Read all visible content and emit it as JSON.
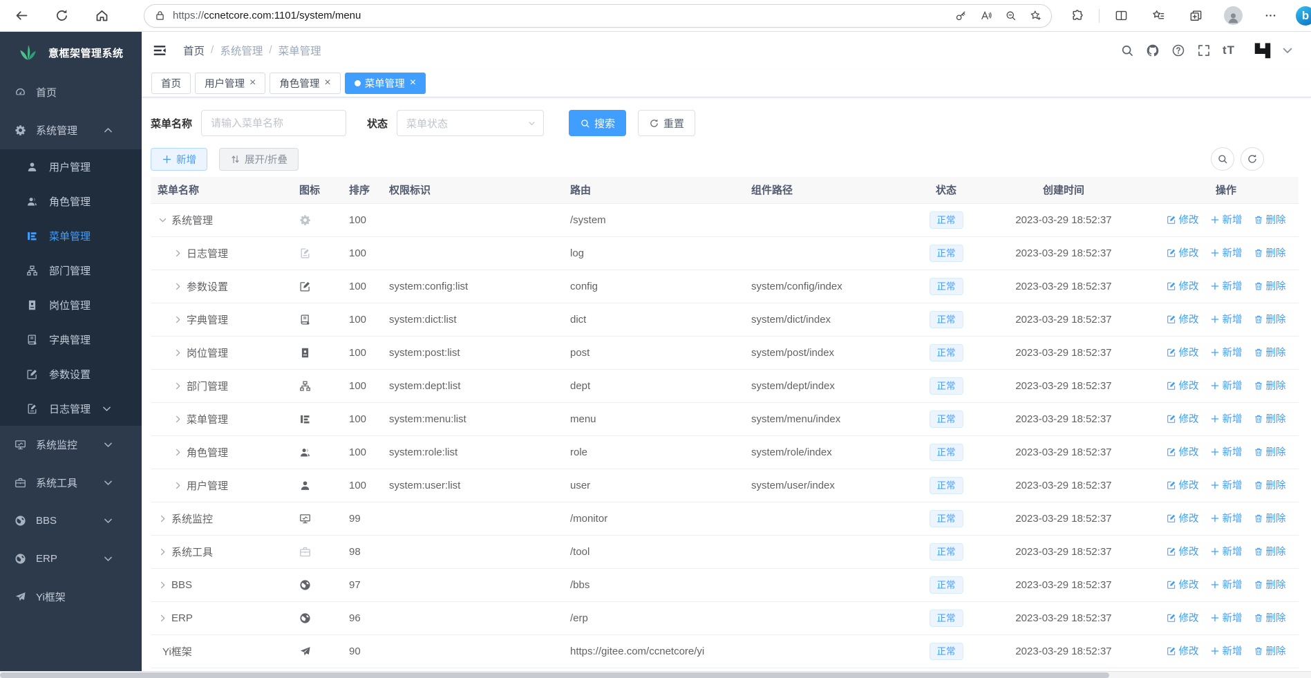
{
  "browser": {
    "url_scheme": "https://",
    "url_rest": "ccnetcore.com:1101/system/menu"
  },
  "glyphs": {
    "close": "×",
    "text_size": "tT",
    "bing": "b"
  },
  "sidebar": {
    "logo_title": "意框架管理系统",
    "items": [
      {
        "key": "home",
        "label": "首页",
        "icon": "dashboard-icon"
      },
      {
        "key": "system",
        "label": "系统管理",
        "icon": "gear-icon",
        "expanded": true,
        "children": [
          {
            "key": "user",
            "label": "用户管理",
            "icon": "user-icon"
          },
          {
            "key": "role",
            "label": "角色管理",
            "icon": "role-icon"
          },
          {
            "key": "menu",
            "label": "菜单管理",
            "icon": "menu-icon",
            "active": true
          },
          {
            "key": "dept",
            "label": "部门管理",
            "icon": "dept-icon"
          },
          {
            "key": "post",
            "label": "岗位管理",
            "icon": "post-icon"
          },
          {
            "key": "dict",
            "label": "字典管理",
            "icon": "dict-icon"
          },
          {
            "key": "config",
            "label": "参数设置",
            "icon": "config-icon"
          },
          {
            "key": "log",
            "label": "日志管理",
            "icon": "log-icon",
            "has_children": true
          }
        ]
      },
      {
        "key": "monitor",
        "label": "系统监控",
        "icon": "monitor-icon",
        "has_children": true
      },
      {
        "key": "tool",
        "label": "系统工具",
        "icon": "tool-icon",
        "has_children": true
      },
      {
        "key": "bbs",
        "label": "BBS",
        "icon": "globe-icon",
        "has_children": true
      },
      {
        "key": "erp",
        "label": "ERP",
        "icon": "globe-icon",
        "has_children": true
      },
      {
        "key": "yi",
        "label": "Yi框架",
        "icon": "plane-icon"
      }
    ]
  },
  "header": {
    "breadcrumb": [
      "首页",
      "系统管理",
      "菜单管理"
    ],
    "breadcrumb_separator": "/"
  },
  "tabs": [
    {
      "key": "home",
      "label": "首页",
      "closable": false,
      "active": false
    },
    {
      "key": "user",
      "label": "用户管理",
      "closable": true,
      "active": false
    },
    {
      "key": "role",
      "label": "角色管理",
      "closable": true,
      "active": false
    },
    {
      "key": "menu",
      "label": "菜单管理",
      "closable": true,
      "active": true
    }
  ],
  "filters": {
    "name_label": "菜单名称",
    "name_placeholder": "请输入菜单名称",
    "status_label": "状态",
    "status_placeholder": "菜单状态",
    "search_label": "搜索",
    "reset_label": "重置"
  },
  "toolbar": {
    "add_label": "新增",
    "toggle_label": "展开/折叠"
  },
  "table": {
    "headers": [
      "菜单名称",
      "图标",
      "排序",
      "权限标识",
      "路由",
      "组件路径",
      "状态",
      "创建时间",
      "操作"
    ],
    "action_labels": {
      "edit": "修改",
      "add": "新增",
      "delete": "删除"
    },
    "rows": [
      {
        "name": "系统管理",
        "icon": "gear-icon",
        "icon_muted": true,
        "level": 0,
        "expander": "down",
        "sort": "100",
        "perm": "",
        "route": "/system",
        "component": "",
        "status": "正常",
        "created": "2023-03-29 18:52:37"
      },
      {
        "name": "日志管理",
        "icon": "log-icon",
        "icon_muted": true,
        "level": 1,
        "expander": "right",
        "sort": "100",
        "perm": "",
        "route": "log",
        "component": "",
        "status": "正常",
        "created": "2023-03-29 18:52:37"
      },
      {
        "name": "参数设置",
        "icon": "config-icon",
        "level": 1,
        "expander": "right",
        "sort": "100",
        "perm": "system:config:list",
        "route": "config",
        "component": "system/config/index",
        "status": "正常",
        "created": "2023-03-29 18:52:37"
      },
      {
        "name": "字典管理",
        "icon": "dict-icon",
        "level": 1,
        "expander": "right",
        "sort": "100",
        "perm": "system:dict:list",
        "route": "dict",
        "component": "system/dict/index",
        "status": "正常",
        "created": "2023-03-29 18:52:37"
      },
      {
        "name": "岗位管理",
        "icon": "post-icon",
        "level": 1,
        "expander": "right",
        "sort": "100",
        "perm": "system:post:list",
        "route": "post",
        "component": "system/post/index",
        "status": "正常",
        "created": "2023-03-29 18:52:37"
      },
      {
        "name": "部门管理",
        "icon": "dept-icon",
        "level": 1,
        "expander": "right",
        "sort": "100",
        "perm": "system:dept:list",
        "route": "dept",
        "component": "system/dept/index",
        "status": "正常",
        "created": "2023-03-29 18:52:37"
      },
      {
        "name": "菜单管理",
        "icon": "menu-icon",
        "level": 1,
        "expander": "right",
        "sort": "100",
        "perm": "system:menu:list",
        "route": "menu",
        "component": "system/menu/index",
        "status": "正常",
        "created": "2023-03-29 18:52:37"
      },
      {
        "name": "角色管理",
        "icon": "role-icon",
        "level": 1,
        "expander": "right",
        "sort": "100",
        "perm": "system:role:list",
        "route": "role",
        "component": "system/role/index",
        "status": "正常",
        "created": "2023-03-29 18:52:37"
      },
      {
        "name": "用户管理",
        "icon": "user-icon",
        "level": 1,
        "expander": "right",
        "sort": "100",
        "perm": "system:user:list",
        "route": "user",
        "component": "system/user/index",
        "status": "正常",
        "created": "2023-03-29 18:52:37"
      },
      {
        "name": "系统监控",
        "icon": "monitor-icon",
        "level": 0,
        "expander": "right",
        "sort": "99",
        "perm": "",
        "route": "/monitor",
        "component": "",
        "status": "正常",
        "created": "2023-03-29 18:52:37"
      },
      {
        "name": "系统工具",
        "icon": "tool-icon",
        "icon_muted": true,
        "level": 0,
        "expander": "right",
        "sort": "98",
        "perm": "",
        "route": "/tool",
        "component": "",
        "status": "正常",
        "created": "2023-03-29 18:52:37"
      },
      {
        "name": "BBS",
        "icon": "globe-icon",
        "level": 0,
        "expander": "right",
        "sort": "97",
        "perm": "",
        "route": "/bbs",
        "component": "",
        "status": "正常",
        "created": "2023-03-29 18:52:37"
      },
      {
        "name": "ERP",
        "icon": "globe-icon",
        "level": 0,
        "expander": "right",
        "sort": "96",
        "perm": "",
        "route": "/erp",
        "component": "",
        "status": "正常",
        "created": "2023-03-29 18:52:37"
      },
      {
        "name": "Yi框架",
        "icon": "plane-icon",
        "level": 0,
        "expander": "none",
        "sort": "90",
        "perm": "",
        "route": "https://gitee.com/ccnetcore/yi",
        "component": "",
        "status": "正常",
        "created": "2023-03-29 18:52:37"
      }
    ]
  },
  "colors": {
    "accent": "#409eff",
    "sidebar_bg": "#2d3a4b",
    "submenu_bg": "#1f2d3d",
    "status_bg": "#ecf5ff",
    "status_border": "#d9ecff"
  }
}
